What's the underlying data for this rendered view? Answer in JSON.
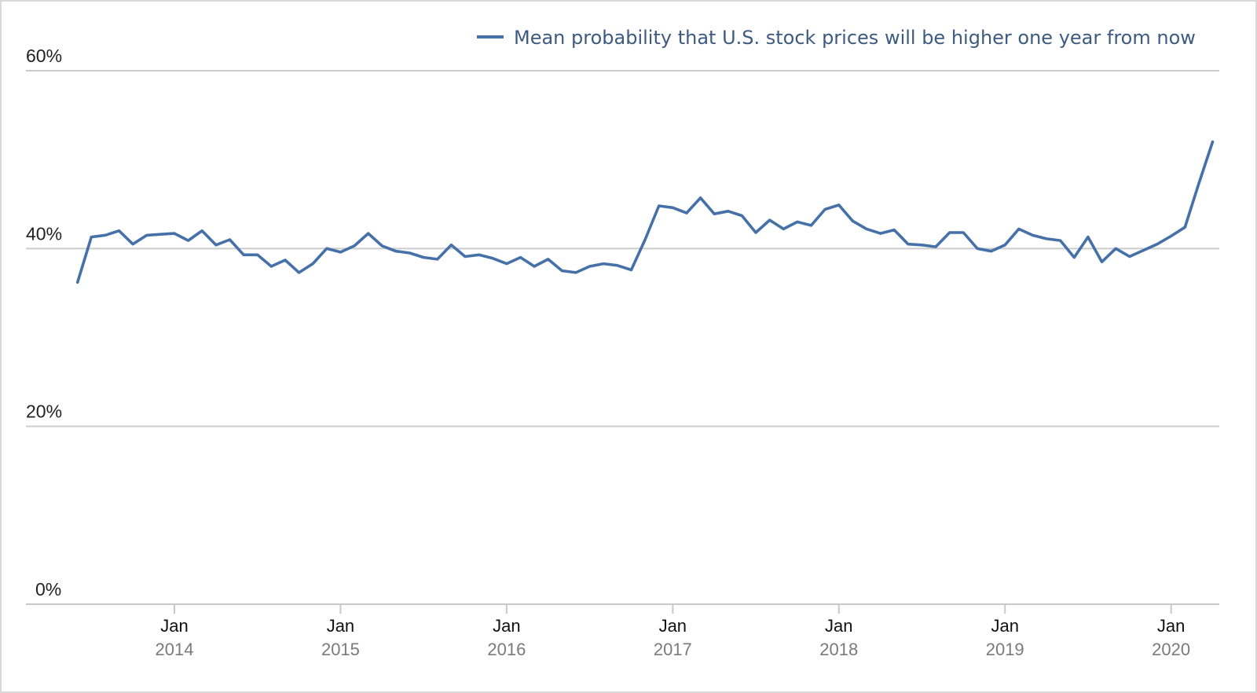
{
  "chart_data": {
    "type": "line",
    "series": [
      {
        "name": "Mean probability that U.S. stock prices will be higher one year from now",
        "color": "#4571a8",
        "x": [
          "2013-06",
          "2013-07",
          "2013-08",
          "2013-09",
          "2013-10",
          "2013-11",
          "2013-12",
          "2014-01",
          "2014-02",
          "2014-03",
          "2014-04",
          "2014-05",
          "2014-06",
          "2014-07",
          "2014-08",
          "2014-09",
          "2014-10",
          "2014-11",
          "2014-12",
          "2015-01",
          "2015-02",
          "2015-03",
          "2015-04",
          "2015-05",
          "2015-06",
          "2015-07",
          "2015-08",
          "2015-09",
          "2015-10",
          "2015-11",
          "2015-12",
          "2016-01",
          "2016-02",
          "2016-03",
          "2016-04",
          "2016-05",
          "2016-06",
          "2016-07",
          "2016-08",
          "2016-09",
          "2016-10",
          "2016-11",
          "2016-12",
          "2017-01",
          "2017-02",
          "2017-03",
          "2017-04",
          "2017-05",
          "2017-06",
          "2017-07",
          "2017-08",
          "2017-09",
          "2017-10",
          "2017-11",
          "2017-12",
          "2018-01",
          "2018-02",
          "2018-03",
          "2018-04",
          "2018-05",
          "2018-06",
          "2018-07",
          "2018-08",
          "2018-09",
          "2018-10",
          "2018-11",
          "2018-12",
          "2019-01",
          "2019-02",
          "2019-03",
          "2019-04",
          "2019-05",
          "2019-06",
          "2019-07",
          "2019-08",
          "2019-09",
          "2019-10",
          "2019-11",
          "2019-12",
          "2020-01",
          "2020-02",
          "2020-03",
          "2020-04"
        ],
        "values": [
          36.2,
          41.3,
          41.5,
          42.0,
          40.5,
          41.5,
          41.6,
          41.7,
          40.9,
          42.0,
          40.4,
          41.0,
          39.3,
          39.3,
          38.0,
          38.7,
          37.3,
          38.3,
          40.0,
          39.6,
          40.3,
          41.7,
          40.3,
          39.7,
          39.5,
          39.0,
          38.8,
          40.4,
          39.1,
          39.3,
          38.9,
          38.3,
          39.0,
          38.0,
          38.8,
          37.5,
          37.3,
          38.0,
          38.3,
          38.1,
          37.6,
          41.0,
          44.8,
          44.6,
          44.0,
          45.7,
          43.9,
          44.2,
          43.7,
          41.8,
          43.2,
          42.2,
          43.0,
          42.6,
          44.4,
          44.9,
          43.1,
          42.2,
          41.7,
          42.1,
          40.5,
          40.4,
          40.2,
          41.8,
          41.8,
          40.0,
          39.7,
          40.4,
          42.2,
          41.5,
          41.1,
          40.9,
          39.0,
          41.3,
          38.5,
          40.0,
          39.1,
          39.8,
          40.5,
          41.4,
          42.4,
          47.3,
          52.0
        ]
      }
    ],
    "ylim": [
      0,
      60
    ],
    "yticks": [
      0,
      20,
      40,
      60
    ],
    "ytick_labels": [
      "0%",
      "20%",
      "40%",
      "60%"
    ],
    "xticks": [
      {
        "date": "2014-01",
        "month": "Jan",
        "year": "2014"
      },
      {
        "date": "2015-01",
        "month": "Jan",
        "year": "2015"
      },
      {
        "date": "2016-01",
        "month": "Jan",
        "year": "2016"
      },
      {
        "date": "2017-01",
        "month": "Jan",
        "year": "2017"
      },
      {
        "date": "2018-01",
        "month": "Jan",
        "year": "2018"
      },
      {
        "date": "2019-01",
        "month": "Jan",
        "year": "2019"
      },
      {
        "date": "2020-01",
        "month": "Jan",
        "year": "2020"
      }
    ],
    "grid": "horizontal",
    "legend_placement": "top-right",
    "colors": {
      "line": "#4571a8",
      "grid": "#cccccc",
      "legend_text": "#3d5a80"
    }
  }
}
